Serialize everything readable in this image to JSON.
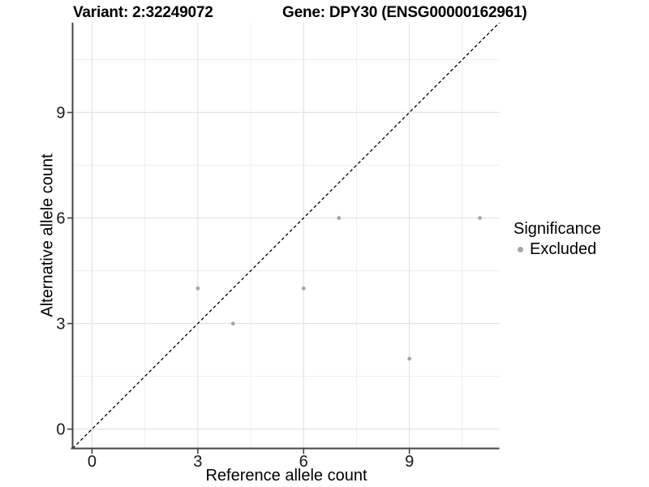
{
  "chart_data": {
    "type": "scatter",
    "title_left": "Variant: 2:32249072",
    "title_right": "Gene: DPY30 (ENSG00000162961)",
    "xlabel": "Reference allele count",
    "ylabel": "Alternative allele count",
    "xlim": [
      -0.55,
      11.55
    ],
    "ylim": [
      -0.55,
      11.55
    ],
    "xticks": [
      0,
      3,
      6,
      9
    ],
    "yticks": [
      0,
      3,
      6,
      9
    ],
    "minor_ticks_x": [
      1.5,
      4.5,
      7.5,
      10.5
    ],
    "minor_ticks_y": [
      1.5,
      4.5,
      7.5,
      10.5
    ],
    "grid": "on",
    "legend_position": "right",
    "series": [
      {
        "name": "Excluded",
        "color": "#a6a6a6",
        "points": [
          [
            3,
            4
          ],
          [
            4,
            3
          ],
          [
            6,
            4
          ],
          [
            7,
            6
          ],
          [
            9,
            2
          ],
          [
            11,
            6
          ]
        ]
      }
    ],
    "reference_line": {
      "type": "identity",
      "style": "dashed",
      "color": "#000000",
      "from": [
        -0.55,
        -0.55
      ],
      "to": [
        11.55,
        11.55
      ]
    },
    "legend": {
      "title": "Significance",
      "items": [
        {
          "label": "Excluded",
          "color": "#a6a6a6"
        }
      ]
    }
  },
  "colors": {
    "background": "#ffffff",
    "grid_major": "#e3e3e3",
    "grid_minor": "#eeeeee",
    "axis_line": "#444444",
    "tick_text": "#1a1a1a",
    "point": "#a6a6a6"
  }
}
